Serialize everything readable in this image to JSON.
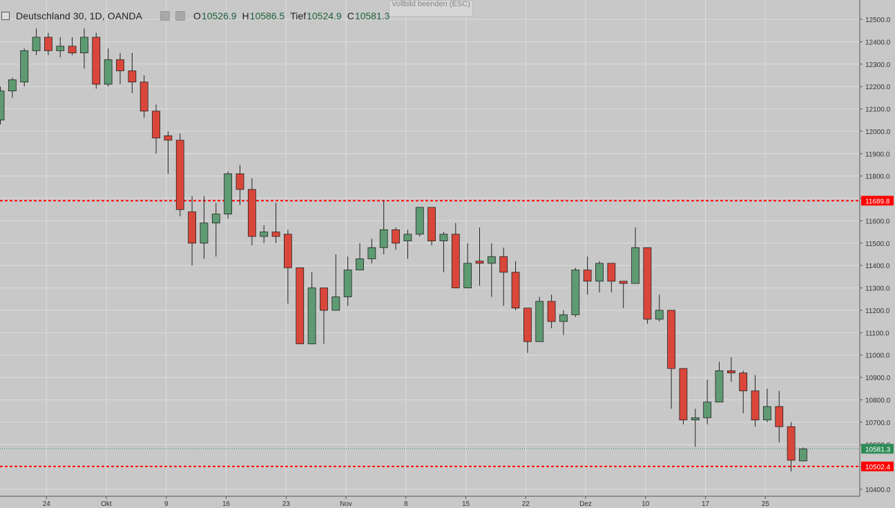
{
  "header": {
    "title": "Deutschland 30, 1D, OANDA",
    "open_label": "O",
    "open_value": "10526.9",
    "high_label": "H",
    "high_value": "10586.5",
    "low_label": "Tief",
    "low_value": "10524.9",
    "close_label": "C",
    "close_value": "10581.3"
  },
  "tooltip": {
    "text": "Vollbild beenden (ESC)"
  },
  "colors": {
    "up": "#5e9a72",
    "down": "#d9473a",
    "background": "#c8c8c8",
    "grid": "#dcdcdc",
    "level_line": "#ff0000",
    "last_price": "#2e8b57"
  },
  "chart_data": {
    "type": "candlestick",
    "y_range": [
      10380,
      12560
    ],
    "y_ticks": [
      "10400.0",
      "10500.0",
      "10600.0",
      "10700.0",
      "10800.0",
      "10900.0",
      "11000.0",
      "11100.0",
      "11200.0",
      "11300.0",
      "11400.0",
      "11500.0",
      "11600.0",
      "11700.0",
      "11800.0",
      "11900.0",
      "12000.0",
      "12100.0",
      "12200.0",
      "12300.0",
      "12400.0",
      "12500.0"
    ],
    "x_ticks": [
      {
        "label": "24",
        "i": 3.3
      },
      {
        "label": "Okt",
        "i": 8.3
      },
      {
        "label": "9",
        "i": 13.3
      },
      {
        "label": "16",
        "i": 18.3
      },
      {
        "label": "23",
        "i": 23.3
      },
      {
        "label": "Nov",
        "i": 28.3
      },
      {
        "label": "8",
        "i": 33.3
      },
      {
        "label": "15",
        "i": 38.3
      },
      {
        "label": "22",
        "i": 43.3
      },
      {
        "label": "Dez",
        "i": 48.3
      },
      {
        "label": "10",
        "i": 53.3
      },
      {
        "label": "17",
        "i": 58.3
      },
      {
        "label": "25",
        "i": 63.3
      }
    ],
    "levels": [
      {
        "value": 11689.8,
        "label": "11689.8",
        "style": "dashed",
        "color": "#ff0000"
      },
      {
        "value": 10502.4,
        "label": "10502.4",
        "style": "dashed",
        "color": "#ff0000"
      },
      {
        "value": 10581.3,
        "label": "10581.3",
        "style": "dotted",
        "color": "#2e8b57"
      }
    ],
    "candles": [
      {
        "o": 12050,
        "h": 12200,
        "l": 12030,
        "c": 12180
      },
      {
        "o": 12180,
        "h": 12240,
        "l": 12150,
        "c": 12230
      },
      {
        "o": 12220,
        "h": 12370,
        "l": 12200,
        "c": 12360
      },
      {
        "o": 12360,
        "h": 12460,
        "l": 12340,
        "c": 12420
      },
      {
        "o": 12420,
        "h": 12440,
        "l": 12340,
        "c": 12360
      },
      {
        "o": 12360,
        "h": 12420,
        "l": 12330,
        "c": 12380
      },
      {
        "o": 12380,
        "h": 12420,
        "l": 12340,
        "c": 12350
      },
      {
        "o": 12350,
        "h": 12460,
        "l": 12280,
        "c": 12420
      },
      {
        "o": 12420,
        "h": 12440,
        "l": 12190,
        "c": 12210
      },
      {
        "o": 12210,
        "h": 12370,
        "l": 12200,
        "c": 12320
      },
      {
        "o": 12320,
        "h": 12350,
        "l": 12210,
        "c": 12270
      },
      {
        "o": 12270,
        "h": 12350,
        "l": 12170,
        "c": 12220
      },
      {
        "o": 12220,
        "h": 12250,
        "l": 12060,
        "c": 12090
      },
      {
        "o": 12090,
        "h": 12120,
        "l": 11900,
        "c": 11970
      },
      {
        "o": 11980,
        "h": 12000,
        "l": 11810,
        "c": 11960
      },
      {
        "o": 11960,
        "h": 11990,
        "l": 11620,
        "c": 11650
      },
      {
        "o": 11640,
        "h": 11710,
        "l": 11400,
        "c": 11500
      },
      {
        "o": 11500,
        "h": 11710,
        "l": 11430,
        "c": 11590
      },
      {
        "o": 11590,
        "h": 11680,
        "l": 11440,
        "c": 11630
      },
      {
        "o": 11630,
        "h": 11820,
        "l": 11610,
        "c": 11810
      },
      {
        "o": 11810,
        "h": 11850,
        "l": 11670,
        "c": 11740
      },
      {
        "o": 11740,
        "h": 11790,
        "l": 11490,
        "c": 11530
      },
      {
        "o": 11530,
        "h": 11580,
        "l": 11500,
        "c": 11550
      },
      {
        "o": 11550,
        "h": 11680,
        "l": 11500,
        "c": 11530
      },
      {
        "o": 11540,
        "h": 11560,
        "l": 11230,
        "c": 11390
      },
      {
        "o": 11390,
        "h": 11390,
        "l": 11050,
        "c": 11050
      },
      {
        "o": 11050,
        "h": 11370,
        "l": 11050,
        "c": 11300
      },
      {
        "o": 11300,
        "h": 11300,
        "l": 11050,
        "c": 11200
      },
      {
        "o": 11200,
        "h": 11450,
        "l": 11200,
        "c": 11260
      },
      {
        "o": 11260,
        "h": 11440,
        "l": 11220,
        "c": 11380
      },
      {
        "o": 11380,
        "h": 11500,
        "l": 11380,
        "c": 11430
      },
      {
        "o": 11430,
        "h": 11520,
        "l": 11410,
        "c": 11480
      },
      {
        "o": 11480,
        "h": 11690,
        "l": 11450,
        "c": 11560
      },
      {
        "o": 11560,
        "h": 11570,
        "l": 11470,
        "c": 11500
      },
      {
        "o": 11510,
        "h": 11560,
        "l": 11430,
        "c": 11540
      },
      {
        "o": 11540,
        "h": 11650,
        "l": 11530,
        "c": 11660
      },
      {
        "o": 11660,
        "h": 11660,
        "l": 11490,
        "c": 11510
      },
      {
        "o": 11510,
        "h": 11550,
        "l": 11370,
        "c": 11540
      },
      {
        "o": 11540,
        "h": 11590,
        "l": 11300,
        "c": 11300
      },
      {
        "o": 11300,
        "h": 11500,
        "l": 11300,
        "c": 11410
      },
      {
        "o": 11420,
        "h": 11570,
        "l": 11310,
        "c": 11410
      },
      {
        "o": 11410,
        "h": 11500,
        "l": 11260,
        "c": 11440
      },
      {
        "o": 11440,
        "h": 11480,
        "l": 11220,
        "c": 11370
      },
      {
        "o": 11370,
        "h": 11420,
        "l": 11200,
        "c": 11210
      },
      {
        "o": 11210,
        "h": 11210,
        "l": 11010,
        "c": 11060
      },
      {
        "o": 11060,
        "h": 11260,
        "l": 11060,
        "c": 11240
      },
      {
        "o": 11240,
        "h": 11270,
        "l": 11120,
        "c": 11150
      },
      {
        "o": 11150,
        "h": 11200,
        "l": 11090,
        "c": 11180
      },
      {
        "o": 11180,
        "h": 11390,
        "l": 11170,
        "c": 11380
      },
      {
        "o": 11380,
        "h": 11440,
        "l": 11270,
        "c": 11330
      },
      {
        "o": 11330,
        "h": 11420,
        "l": 11280,
        "c": 11410
      },
      {
        "o": 11410,
        "h": 11410,
        "l": 11280,
        "c": 11330
      },
      {
        "o": 11330,
        "h": 11330,
        "l": 11210,
        "c": 11320
      },
      {
        "o": 11320,
        "h": 11570,
        "l": 11320,
        "c": 11480
      },
      {
        "o": 11480,
        "h": 11480,
        "l": 11140,
        "c": 11160
      },
      {
        "o": 11160,
        "h": 11270,
        "l": 11150,
        "c": 11200
      },
      {
        "o": 11200,
        "h": 11200,
        "l": 10760,
        "c": 10940
      },
      {
        "o": 10940,
        "h": 10940,
        "l": 10690,
        "c": 10710
      },
      {
        "o": 10710,
        "h": 10760,
        "l": 10590,
        "c": 10720
      },
      {
        "o": 10720,
        "h": 10890,
        "l": 10690,
        "c": 10790
      },
      {
        "o": 10790,
        "h": 10970,
        "l": 10790,
        "c": 10930
      },
      {
        "o": 10930,
        "h": 10990,
        "l": 10880,
        "c": 10920
      },
      {
        "o": 10920,
        "h": 10930,
        "l": 10740,
        "c": 10840
      },
      {
        "o": 10840,
        "h": 10910,
        "l": 10680,
        "c": 10710
      },
      {
        "o": 10710,
        "h": 10850,
        "l": 10700,
        "c": 10770
      },
      {
        "o": 10770,
        "h": 10840,
        "l": 10610,
        "c": 10680
      },
      {
        "o": 10680,
        "h": 10700,
        "l": 10480,
        "c": 10530
      },
      {
        "o": 10527,
        "h": 10587,
        "l": 10525,
        "c": 10581
      }
    ]
  }
}
